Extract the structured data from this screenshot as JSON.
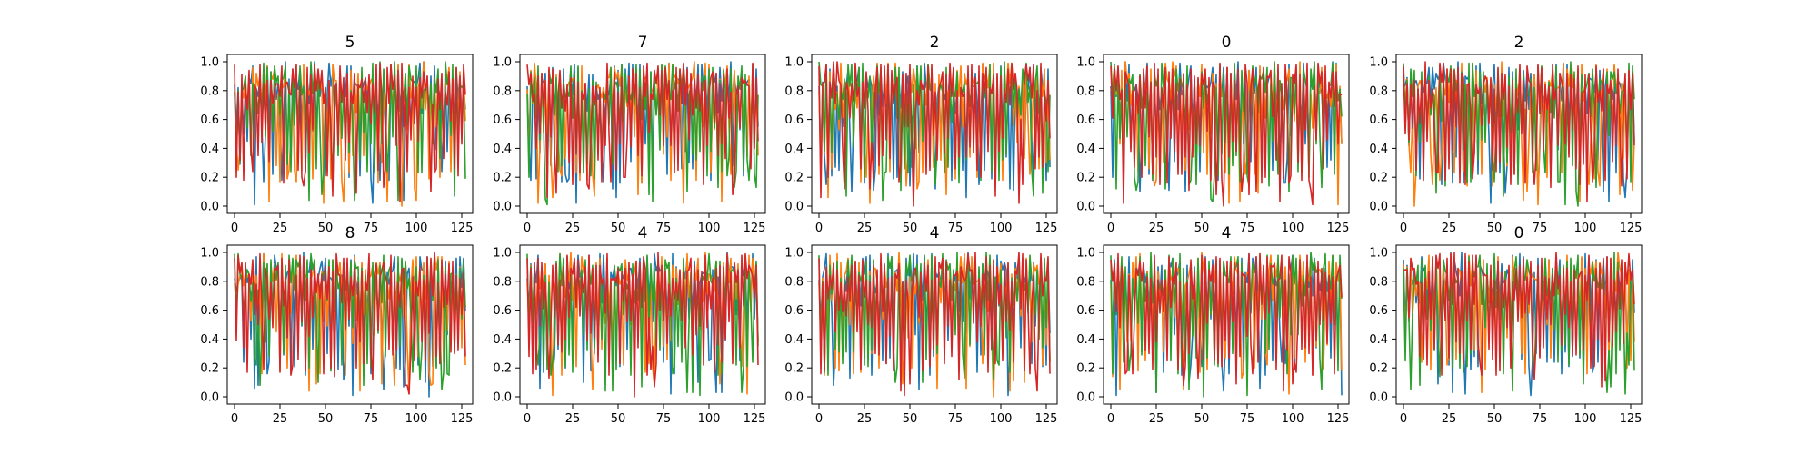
{
  "figure": {
    "background": "#ffffff"
  },
  "series_colors": [
    "#1f77b4",
    "#ff7f0e",
    "#2ca02c",
    "#d62728"
  ],
  "chart_data": [
    {
      "type": "line",
      "title": "5",
      "xlim": [
        0,
        127
      ],
      "ylim": [
        0,
        1
      ],
      "xticks": [
        0,
        25,
        50,
        75,
        100,
        125
      ],
      "yticks": [
        0.0,
        0.2,
        0.4,
        0.6,
        0.8,
        1.0
      ],
      "seed": 11,
      "series": [
        {
          "values": []
        },
        {
          "values": []
        },
        {
          "values": []
        },
        {
          "values": []
        }
      ]
    },
    {
      "type": "line",
      "title": "7",
      "xlim": [
        0,
        127
      ],
      "ylim": [
        0,
        1
      ],
      "xticks": [
        0,
        25,
        50,
        75,
        100,
        125
      ],
      "yticks": [
        0.0,
        0.2,
        0.4,
        0.6,
        0.8,
        1.0
      ],
      "seed": 22,
      "series": [
        {
          "values": []
        },
        {
          "values": []
        },
        {
          "values": []
        },
        {
          "values": []
        }
      ]
    },
    {
      "type": "line",
      "title": "2",
      "xlim": [
        0,
        127
      ],
      "ylim": [
        0,
        1
      ],
      "xticks": [
        0,
        25,
        50,
        75,
        100,
        125
      ],
      "yticks": [
        0.0,
        0.2,
        0.4,
        0.6,
        0.8,
        1.0
      ],
      "seed": 33,
      "series": [
        {
          "values": []
        },
        {
          "values": []
        },
        {
          "values": []
        },
        {
          "values": []
        }
      ]
    },
    {
      "type": "line",
      "title": "0",
      "xlim": [
        0,
        127
      ],
      "ylim": [
        0,
        1
      ],
      "xticks": [
        0,
        25,
        50,
        75,
        100,
        125
      ],
      "yticks": [
        0.0,
        0.2,
        0.4,
        0.6,
        0.8,
        1.0
      ],
      "seed": 44,
      "series": [
        {
          "values": []
        },
        {
          "values": []
        },
        {
          "values": []
        },
        {
          "values": []
        }
      ]
    },
    {
      "type": "line",
      "title": "2",
      "xlim": [
        0,
        127
      ],
      "ylim": [
        0,
        1
      ],
      "xticks": [
        0,
        25,
        50,
        75,
        100,
        125
      ],
      "yticks": [
        0.0,
        0.2,
        0.4,
        0.6,
        0.8,
        1.0
      ],
      "seed": 55,
      "series": [
        {
          "values": []
        },
        {
          "values": []
        },
        {
          "values": []
        },
        {
          "values": []
        }
      ]
    },
    {
      "type": "line",
      "title": "8",
      "xlim": [
        0,
        127
      ],
      "ylim": [
        0,
        1
      ],
      "xticks": [
        0,
        25,
        50,
        75,
        100,
        125
      ],
      "yticks": [
        0.0,
        0.2,
        0.4,
        0.6,
        0.8,
        1.0
      ],
      "seed": 66,
      "series": [
        {
          "values": []
        },
        {
          "values": []
        },
        {
          "values": []
        },
        {
          "values": []
        }
      ]
    },
    {
      "type": "line",
      "title": "4",
      "xlim": [
        0,
        127
      ],
      "ylim": [
        0,
        1
      ],
      "xticks": [
        0,
        25,
        50,
        75,
        100,
        125
      ],
      "yticks": [
        0.0,
        0.2,
        0.4,
        0.6,
        0.8,
        1.0
      ],
      "seed": 77,
      "series": [
        {
          "values": []
        },
        {
          "values": []
        },
        {
          "values": []
        },
        {
          "values": []
        }
      ]
    },
    {
      "type": "line",
      "title": "4",
      "xlim": [
        0,
        127
      ],
      "ylim": [
        0,
        1
      ],
      "xticks": [
        0,
        25,
        50,
        75,
        100,
        125
      ],
      "yticks": [
        0.0,
        0.2,
        0.4,
        0.6,
        0.8,
        1.0
      ],
      "seed": 88,
      "series": [
        {
          "values": []
        },
        {
          "values": []
        },
        {
          "values": []
        },
        {
          "values": []
        }
      ]
    },
    {
      "type": "line",
      "title": "4",
      "xlim": [
        0,
        127
      ],
      "ylim": [
        0,
        1
      ],
      "xticks": [
        0,
        25,
        50,
        75,
        100,
        125
      ],
      "yticks": [
        0.0,
        0.2,
        0.4,
        0.6,
        0.8,
        1.0
      ],
      "seed": 99,
      "series": [
        {
          "values": []
        },
        {
          "values": []
        },
        {
          "values": []
        },
        {
          "values": []
        }
      ]
    },
    {
      "type": "line",
      "title": "0",
      "xlim": [
        0,
        127
      ],
      "ylim": [
        0,
        1
      ],
      "xticks": [
        0,
        25,
        50,
        75,
        100,
        125
      ],
      "yticks": [
        0.0,
        0.2,
        0.4,
        0.6,
        0.8,
        1.0
      ],
      "seed": 111,
      "series": [
        {
          "values": []
        },
        {
          "values": []
        },
        {
          "values": []
        },
        {
          "values": []
        }
      ]
    }
  ]
}
